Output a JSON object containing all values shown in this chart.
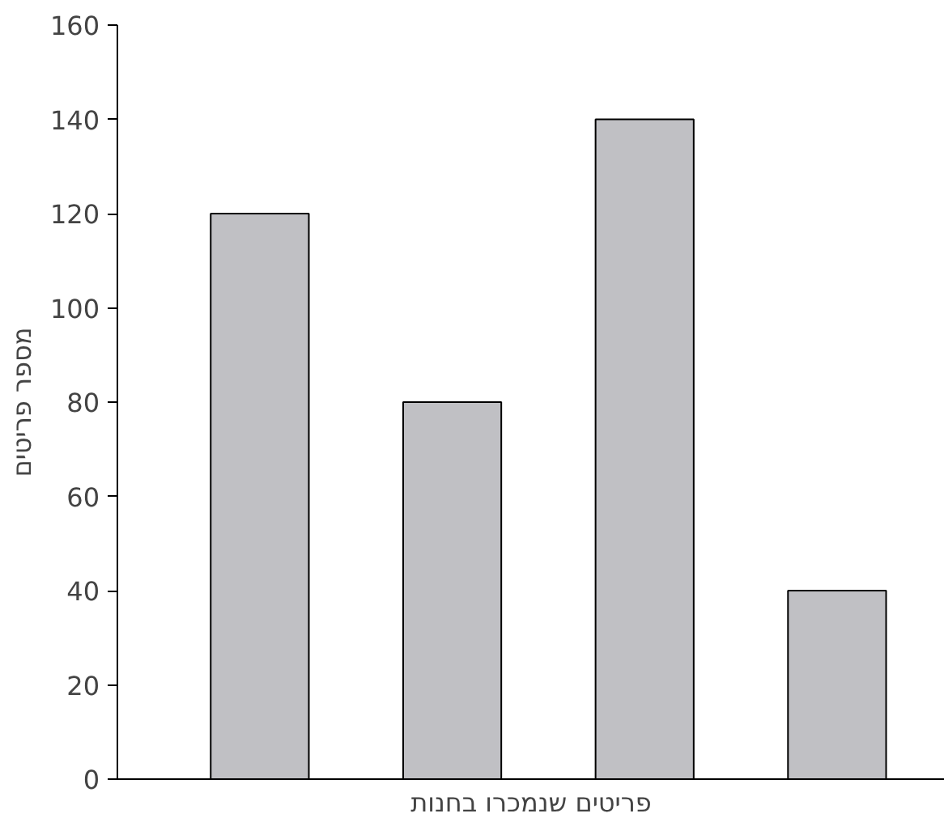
{
  "chart_data": {
    "type": "bar",
    "xlabel": "פריטים שנמכרו בחנות",
    "ylabel": "מספר פריטים",
    "categories": [
      null,
      null,
      null,
      null
    ],
    "values": [
      120,
      80,
      140,
      40
    ],
    "color": "#c0c0c4",
    "ylim": [
      0,
      160
    ],
    "yticks": [
      0,
      20,
      40,
      60,
      80,
      100,
      120,
      140,
      160
    ],
    "grid": false
  }
}
